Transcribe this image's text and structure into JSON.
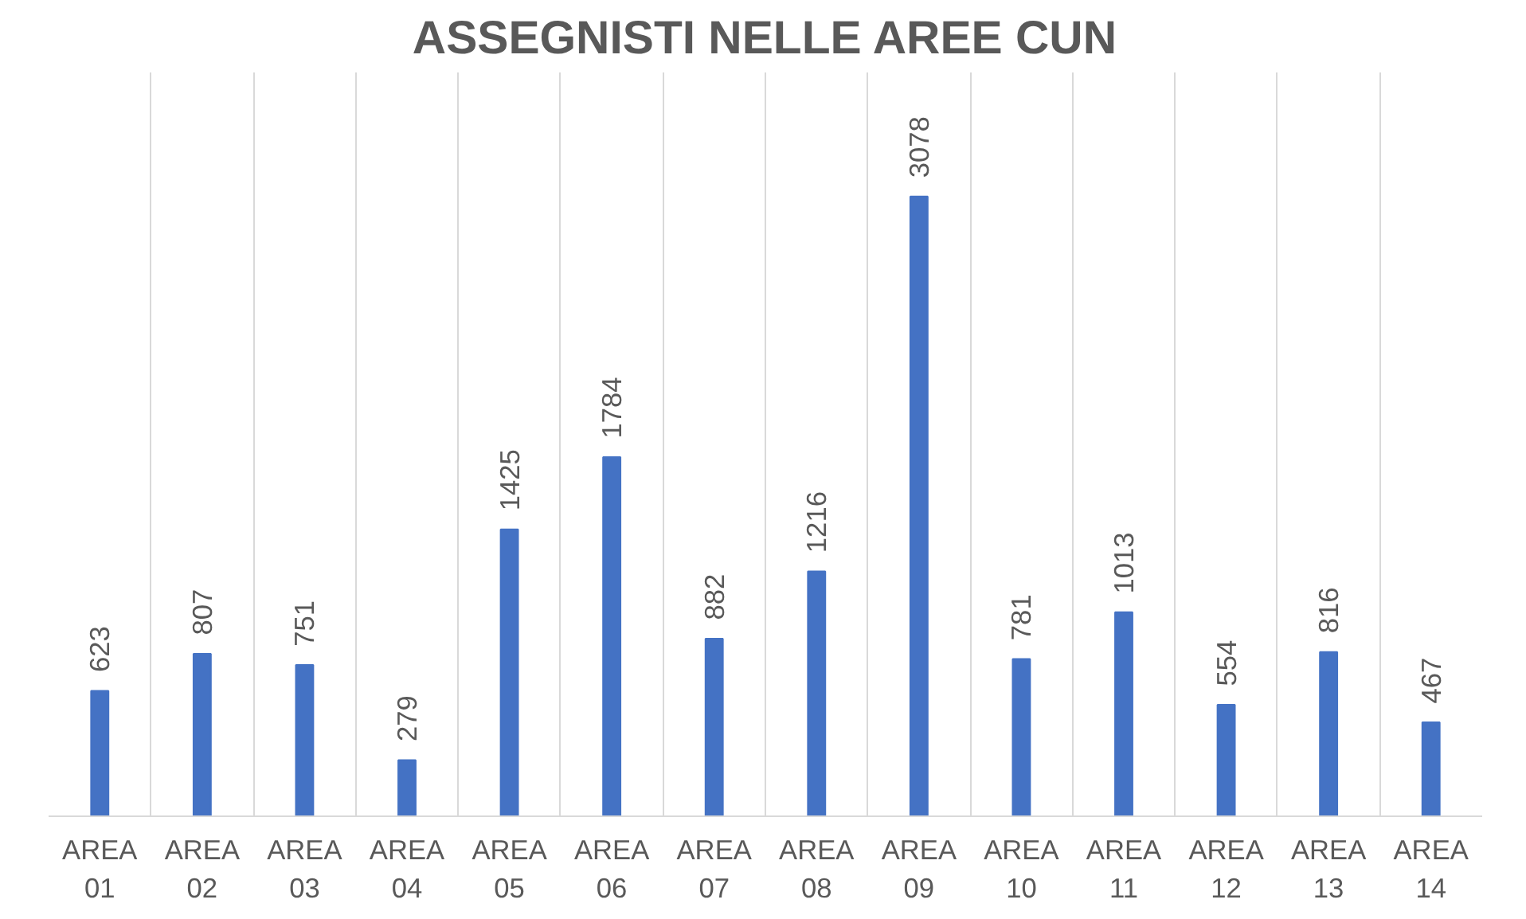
{
  "chart_data": {
    "type": "bar",
    "title": "ASSEGNISTI NELLE AREE CUN",
    "categories": [
      "AREA 01",
      "AREA 02",
      "AREA 03",
      "AREA 04",
      "AREA 05",
      "AREA 06",
      "AREA 07",
      "AREA 08",
      "AREA 09",
      "AREA 10",
      "AREA 11",
      "AREA 12",
      "AREA 13",
      "AREA 14"
    ],
    "values": [
      623,
      807,
      751,
      279,
      1425,
      1784,
      882,
      1216,
      3078,
      781,
      1013,
      554,
      816,
      467
    ],
    "color": "#4472c4",
    "data_labels": true,
    "grid": "x"
  }
}
